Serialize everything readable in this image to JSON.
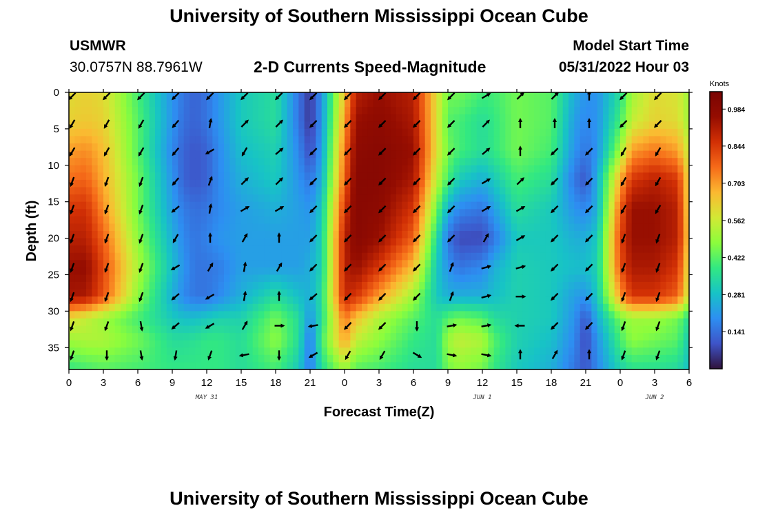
{
  "header": {
    "title": "University of Southern Mississippi Ocean Cube",
    "station": "USMWR",
    "coordinates": "30.0757N  88.7961W",
    "subtitle": "2-D Currents Speed-Magnitude",
    "start_label": "Model Start Time",
    "start_value": "05/31/2022 Hour 03"
  },
  "footer": {
    "title": "University of Southern Mississippi Ocean Cube"
  },
  "chart_data": {
    "type": "heatmap",
    "title": "2-D Currents Speed-Magnitude",
    "xlabel": "Forecast Time(Z)",
    "ylabel": "Depth (ft)",
    "x_ticks": [
      "0",
      "3",
      "6",
      "9",
      "12",
      "15",
      "18",
      "21",
      "0",
      "3",
      "6",
      "9",
      "12",
      "15",
      "18",
      "21",
      "0",
      "3",
      "6"
    ],
    "x_range_hours": [
      0,
      54
    ],
    "y_ticks": [
      0,
      5,
      10,
      15,
      20,
      25,
      30,
      35
    ],
    "y_range_ft": [
      0,
      38
    ],
    "y_inverted": true,
    "date_labels": [
      {
        "text": "MAY 31",
        "hour": 12
      },
      {
        "text": "JUN 1",
        "hour": 36
      },
      {
        "text": "JUN 2",
        "hour": 51
      }
    ],
    "colorbar": {
      "label": "Knots",
      "min": 0.0,
      "max": 1.05,
      "ticks": [
        "0.141",
        "0.281",
        "0.422",
        "0.562",
        "0.703",
        "0.844",
        "0.984"
      ],
      "colors": [
        "#30123b",
        "#3e54c8",
        "#2d8ff2",
        "#17c3c6",
        "#32e882",
        "#8cfd3c",
        "#d2e935",
        "#fbb931",
        "#f66b19",
        "#d23005",
        "#950d01",
        "#7a0403"
      ]
    },
    "speed_field": {
      "times_h": [
        0,
        1.5,
        3,
        6,
        9,
        10,
        11,
        12,
        13,
        15,
        18,
        20,
        21,
        22,
        24,
        25,
        27,
        30,
        32,
        33,
        34,
        36,
        37,
        39,
        42,
        44,
        45,
        46,
        48,
        49,
        51,
        53,
        54
      ],
      "depths_ft": [
        0,
        4,
        8,
        12,
        16,
        20,
        24,
        28,
        31,
        34,
        38
      ],
      "knots": [
        [
          0.6,
          0.62,
          0.6,
          0.4,
          0.2,
          0.15,
          0.12,
          0.15,
          0.2,
          0.3,
          0.35,
          0.15,
          0.05,
          0.2,
          0.65,
          0.9,
          0.95,
          0.9,
          0.6,
          0.45,
          0.45,
          0.4,
          0.4,
          0.45,
          0.42,
          0.25,
          0.2,
          0.2,
          0.35,
          0.5,
          0.6,
          0.58,
          0.5
        ],
        [
          0.62,
          0.64,
          0.62,
          0.42,
          0.2,
          0.14,
          0.12,
          0.15,
          0.2,
          0.3,
          0.35,
          0.15,
          0.05,
          0.2,
          0.7,
          0.95,
          0.98,
          0.92,
          0.6,
          0.42,
          0.4,
          0.35,
          0.38,
          0.45,
          0.42,
          0.22,
          0.18,
          0.2,
          0.4,
          0.55,
          0.62,
          0.6,
          0.5
        ],
        [
          0.7,
          0.72,
          0.66,
          0.42,
          0.18,
          0.12,
          0.1,
          0.12,
          0.18,
          0.28,
          0.32,
          0.18,
          0.08,
          0.22,
          0.75,
          0.98,
          1.0,
          0.95,
          0.6,
          0.45,
          0.4,
          0.35,
          0.38,
          0.45,
          0.4,
          0.2,
          0.15,
          0.2,
          0.5,
          0.7,
          0.75,
          0.7,
          0.55
        ],
        [
          0.76,
          0.78,
          0.68,
          0.45,
          0.2,
          0.12,
          0.1,
          0.12,
          0.18,
          0.25,
          0.3,
          0.2,
          0.15,
          0.25,
          0.78,
          1.0,
          1.0,
          0.92,
          0.55,
          0.4,
          0.3,
          0.25,
          0.3,
          0.4,
          0.35,
          0.15,
          0.1,
          0.25,
          0.68,
          0.85,
          0.9,
          0.85,
          0.6
        ],
        [
          0.85,
          0.86,
          0.72,
          0.45,
          0.22,
          0.16,
          0.14,
          0.15,
          0.18,
          0.22,
          0.25,
          0.22,
          0.2,
          0.3,
          0.85,
          1.0,
          0.98,
          0.85,
          0.45,
          0.25,
          0.18,
          0.15,
          0.22,
          0.35,
          0.3,
          0.2,
          0.18,
          0.25,
          0.78,
          0.95,
          0.95,
          0.9,
          0.6
        ],
        [
          0.9,
          0.9,
          0.78,
          0.48,
          0.25,
          0.18,
          0.15,
          0.17,
          0.2,
          0.22,
          0.22,
          0.22,
          0.22,
          0.32,
          0.9,
          1.0,
          0.95,
          0.78,
          0.35,
          0.15,
          0.08,
          0.08,
          0.15,
          0.3,
          0.3,
          0.25,
          0.25,
          0.3,
          0.82,
          0.95,
          0.95,
          0.9,
          0.62
        ],
        [
          0.95,
          0.96,
          0.82,
          0.52,
          0.28,
          0.2,
          0.15,
          0.15,
          0.16,
          0.22,
          0.22,
          0.22,
          0.25,
          0.32,
          0.9,
          0.95,
          0.85,
          0.65,
          0.3,
          0.2,
          0.15,
          0.18,
          0.25,
          0.32,
          0.3,
          0.28,
          0.28,
          0.32,
          0.8,
          0.92,
          0.92,
          0.85,
          0.58
        ],
        [
          0.93,
          0.92,
          0.8,
          0.48,
          0.25,
          0.18,
          0.15,
          0.15,
          0.18,
          0.25,
          0.35,
          0.28,
          0.25,
          0.35,
          0.88,
          0.85,
          0.7,
          0.5,
          0.3,
          0.25,
          0.25,
          0.25,
          0.28,
          0.32,
          0.3,
          0.22,
          0.2,
          0.3,
          0.7,
          0.85,
          0.85,
          0.78,
          0.55
        ],
        [
          0.6,
          0.55,
          0.5,
          0.4,
          0.3,
          0.28,
          0.28,
          0.3,
          0.32,
          0.32,
          0.45,
          0.35,
          0.2,
          0.35,
          0.75,
          0.65,
          0.52,
          0.42,
          0.35,
          0.42,
          0.45,
          0.42,
          0.35,
          0.32,
          0.3,
          0.2,
          0.1,
          0.25,
          0.45,
          0.5,
          0.5,
          0.45,
          0.35
        ],
        [
          0.5,
          0.52,
          0.52,
          0.45,
          0.35,
          0.35,
          0.36,
          0.38,
          0.38,
          0.35,
          0.48,
          0.35,
          0.15,
          0.4,
          0.7,
          0.55,
          0.48,
          0.38,
          0.35,
          0.5,
          0.55,
          0.52,
          0.42,
          0.32,
          0.28,
          0.18,
          0.08,
          0.2,
          0.4,
          0.48,
          0.45,
          0.42,
          0.3
        ],
        [
          0.38,
          0.4,
          0.42,
          0.4,
          0.38,
          0.38,
          0.38,
          0.38,
          0.38,
          0.35,
          0.4,
          0.3,
          0.15,
          0.35,
          0.5,
          0.42,
          0.4,
          0.35,
          0.35,
          0.45,
          0.48,
          0.45,
          0.38,
          0.3,
          0.25,
          0.15,
          0.1,
          0.18,
          0.32,
          0.36,
          0.36,
          0.34,
          0.28
        ]
      ]
    },
    "vectors": {
      "times_h": [
        0,
        3,
        6,
        9,
        12,
        15,
        18,
        21,
        24,
        27,
        30,
        33,
        36,
        39,
        42,
        45,
        48,
        51
      ],
      "depths_ft": [
        0.5,
        4.3,
        8.1,
        12.2,
        16.0,
        20.0,
        24.0,
        28.0,
        32.0,
        36.0
      ],
      "direction_deg": [
        [
          135,
          135,
          135,
          135,
          135,
          135,
          135,
          135,
          135,
          135,
          135,
          135,
          -30,
          -45,
          -45,
          -90,
          135,
          135
        ],
        [
          120,
          120,
          120,
          130,
          -80,
          -45,
          -45,
          135,
          135,
          135,
          135,
          135,
          -45,
          -90,
          -90,
          -90,
          135,
          135
        ],
        [
          120,
          120,
          120,
          130,
          150,
          120,
          -40,
          135,
          135,
          135,
          135,
          135,
          -40,
          -90,
          135,
          135,
          120,
          120
        ],
        [
          110,
          110,
          110,
          130,
          -70,
          -45,
          -45,
          135,
          135,
          135,
          135,
          135,
          -30,
          -45,
          135,
          135,
          120,
          120
        ],
        [
          110,
          110,
          110,
          140,
          -80,
          -30,
          -30,
          135,
          135,
          135,
          135,
          135,
          -30,
          -30,
          135,
          135,
          120,
          120
        ],
        [
          110,
          110,
          110,
          120,
          -90,
          -60,
          -90,
          135,
          135,
          135,
          135,
          135,
          -60,
          -30,
          135,
          135,
          110,
          110
        ],
        [
          110,
          110,
          110,
          150,
          -60,
          -80,
          -60,
          135,
          135,
          135,
          135,
          -70,
          -15,
          -15,
          135,
          135,
          110,
          110
        ],
        [
          110,
          110,
          110,
          140,
          150,
          -80,
          -90,
          140,
          135,
          135,
          135,
          -70,
          -15,
          0,
          135,
          135,
          110,
          110
        ],
        [
          110,
          110,
          80,
          140,
          150,
          -60,
          0,
          170,
          135,
          135,
          90,
          -10,
          -10,
          180,
          135,
          135,
          110,
          110
        ],
        [
          110,
          90,
          80,
          100,
          110,
          170,
          90,
          150,
          120,
          120,
          30,
          10,
          10,
          -90,
          -60,
          -90,
          110,
          110
        ]
      ]
    }
  }
}
